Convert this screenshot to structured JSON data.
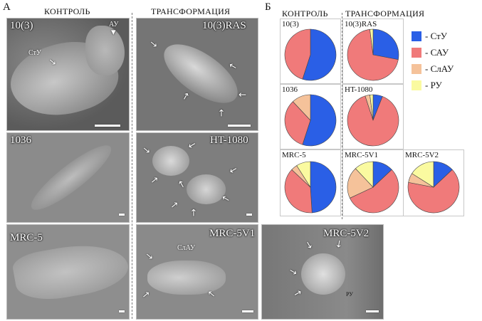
{
  "panel_a": {
    "letter": "А",
    "header_control": "КОНТРОЛЬ",
    "header_transform": "ТРАНСФОРМАЦИЯ",
    "photos": {
      "p10_3": {
        "label": "10(3)",
        "annot_au": "АУ",
        "annot_stu": "СтУ"
      },
      "p10_3ras": {
        "label": "10(3)RAS"
      },
      "p1036": {
        "label": "1036"
      },
      "pht1080": {
        "label": "HT-1080"
      },
      "pmrc5": {
        "label": "MRC-5"
      },
      "pmrc5v1": {
        "label": "MRC-5V1",
        "annot_slau": "СлАУ"
      },
      "pmrc5v2": {
        "label": "MRC-5V2",
        "annot_ru": "РУ"
      }
    }
  },
  "panel_b": {
    "letter": "Б",
    "header_control": "КОНТРОЛЬ",
    "header_transform": "ТРАНСФОРМАЦИЯ",
    "legend": [
      {
        "label": "- СтУ",
        "color": "#2a5fe6"
      },
      {
        "label": "- САУ",
        "color": "#f07a7a"
      },
      {
        "label": "- СлАУ",
        "color": "#f5c29a"
      },
      {
        "label": "- РУ",
        "color": "#fafaa0"
      }
    ]
  },
  "chart_data": [
    {
      "type": "pie",
      "title": "10(3)",
      "categories": [
        "СтУ",
        "САУ",
        "СлАУ",
        "РУ"
      ],
      "values": [
        55,
        45,
        0,
        0
      ]
    },
    {
      "type": "pie",
      "title": "10(3)RAS",
      "categories": [
        "СтУ",
        "САУ",
        "СлАУ",
        "РУ"
      ],
      "values": [
        28,
        70,
        0,
        2
      ]
    },
    {
      "type": "pie",
      "title": "1036",
      "categories": [
        "СтУ",
        "САУ",
        "СлАУ",
        "РУ"
      ],
      "values": [
        55,
        33,
        12,
        0
      ]
    },
    {
      "type": "pie",
      "title": "HT-1080",
      "categories": [
        "СтУ",
        "САУ",
        "СлАУ",
        "РУ"
      ],
      "values": [
        6,
        89,
        3,
        2
      ]
    },
    {
      "type": "pie",
      "title": "MRC-5",
      "categories": [
        "СтУ",
        "САУ",
        "СлАУ",
        "РУ"
      ],
      "values": [
        49,
        38,
        4,
        9
      ]
    },
    {
      "type": "pie",
      "title": "MRC-5V1",
      "categories": [
        "СтУ",
        "САУ",
        "СлАУ",
        "РУ"
      ],
      "values": [
        13,
        55,
        20,
        12
      ]
    },
    {
      "type": "pie",
      "title": "MRC-5V2",
      "categories": [
        "СтУ",
        "САУ",
        "СлАУ",
        "РУ"
      ],
      "values": [
        13,
        65,
        6,
        16
      ]
    }
  ]
}
